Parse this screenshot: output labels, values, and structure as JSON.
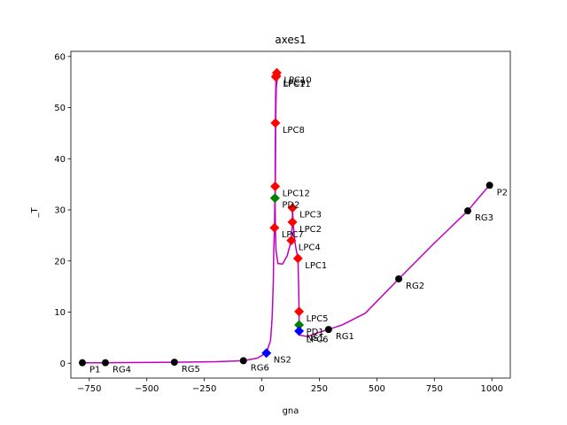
{
  "chart_data": {
    "type": "line",
    "title": "axes1",
    "xlabel": "gna",
    "ylabel": "_T",
    "xlim": [
      -830,
      1080
    ],
    "ylim": [
      -2.9,
      61
    ],
    "xticks": [
      -750,
      -500,
      -250,
      0,
      250,
      500,
      750,
      1000
    ],
    "xtick_labels": [
      "−750",
      "−500",
      "−250",
      "0",
      "250",
      "500",
      "750",
      "1000"
    ],
    "yticks": [
      0,
      10,
      20,
      30,
      40,
      50,
      60
    ],
    "ytick_labels": [
      "0",
      "10",
      "20",
      "30",
      "40",
      "50",
      "60"
    ],
    "grid": false,
    "line_color": "#bf00bf",
    "series": [
      {
        "values": [
          [
            -780,
            0.1
          ],
          [
            -680,
            0.1
          ],
          [
            -380,
            0.2
          ],
          [
            -200,
            0.3
          ],
          [
            -80,
            0.5
          ],
          [
            -20,
            1.0
          ],
          [
            20,
            2.0
          ],
          [
            38,
            4.5
          ],
          [
            45,
            9.0
          ],
          [
            50,
            16.0
          ],
          [
            52,
            22.0
          ],
          [
            55,
            26.5
          ],
          [
            57,
            32.3
          ],
          [
            58,
            34.6
          ],
          [
            58,
            40.0
          ],
          [
            59,
            47.0
          ],
          [
            60,
            52.0
          ],
          [
            61,
            54.7
          ],
          [
            63,
            56.1
          ],
          [
            65,
            56.8
          ],
          [
            67,
            56.5
          ],
          [
            68,
            56.0
          ],
          [
            66,
            55.2
          ],
          [
            63,
            54.0
          ],
          [
            61,
            50.0
          ],
          [
            60,
            45.0
          ],
          [
            59,
            38.0
          ],
          [
            58,
            31.0
          ],
          [
            59,
            26.0
          ],
          [
            62,
            22.0
          ],
          [
            70,
            19.5
          ],
          [
            90,
            19.4
          ],
          [
            110,
            21.0
          ],
          [
            128,
            24.0
          ],
          [
            133,
            27.6
          ],
          [
            133,
            30.4
          ],
          [
            137,
            27.0
          ],
          [
            143,
            24.0
          ],
          [
            150,
            22.0
          ],
          [
            157,
            20.5
          ],
          [
            160,
            15.0
          ],
          [
            162,
            10.1
          ],
          [
            162,
            7.5
          ],
          [
            162,
            6.3
          ],
          [
            165,
            5.5
          ],
          [
            200,
            5.2
          ],
          [
            230,
            5.8
          ],
          [
            290,
            6.6
          ],
          [
            350,
            7.5
          ],
          [
            450,
            9.8
          ],
          [
            595,
            16.5
          ],
          [
            750,
            23.5
          ],
          [
            895,
            29.8
          ],
          [
            945,
            32.5
          ],
          [
            990,
            34.8
          ]
        ]
      }
    ],
    "points": [
      {
        "label": "P1",
        "x": -780,
        "y": 0.1,
        "color": "#000000",
        "marker": "circle"
      },
      {
        "label": "RG4",
        "x": -680,
        "y": 0.1,
        "color": "#000000",
        "marker": "circle"
      },
      {
        "label": "RG5",
        "x": -380,
        "y": 0.2,
        "color": "#000000",
        "marker": "circle"
      },
      {
        "label": "RG6",
        "x": -80,
        "y": 0.5,
        "color": "#000000",
        "marker": "circle"
      },
      {
        "label": "NS2",
        "x": 20,
        "y": 2.0,
        "color": "#0000ff",
        "marker": "diamond"
      },
      {
        "label": "LPC7",
        "x": 55,
        "y": 26.5,
        "color": "#ff0000",
        "marker": "diamond"
      },
      {
        "label": "PD2",
        "x": 57,
        "y": 32.3,
        "color": "#008000",
        "marker": "diamond"
      },
      {
        "label": "LPC12",
        "x": 58,
        "y": 34.6,
        "color": "#ff0000",
        "marker": "diamond"
      },
      {
        "label": "LPC8",
        "x": 59,
        "y": 47.0,
        "color": "#ff0000",
        "marker": "diamond"
      },
      {
        "label": "LPC11",
        "x": 61,
        "y": 56.0,
        "color": "#ff0000",
        "marker": "diamond"
      },
      {
        "label": "LPC9",
        "x": 63,
        "y": 56.2,
        "color": "#ff0000",
        "marker": "diamond"
      },
      {
        "label": "LPC10",
        "x": 65,
        "y": 56.8,
        "color": "#ff0000",
        "marker": "diamond"
      },
      {
        "label": "LPC4",
        "x": 128,
        "y": 24.0,
        "color": "#ff0000",
        "marker": "diamond"
      },
      {
        "label": "LPC2",
        "x": 133,
        "y": 27.6,
        "color": "#ff0000",
        "marker": "diamond"
      },
      {
        "label": "LPC3",
        "x": 133,
        "y": 30.4,
        "color": "#ff0000",
        "marker": "diamond"
      },
      {
        "label": "LPC1",
        "x": 157,
        "y": 20.5,
        "color": "#ff0000",
        "marker": "diamond"
      },
      {
        "label": "LPC5",
        "x": 162,
        "y": 10.1,
        "color": "#ff0000",
        "marker": "diamond"
      },
      {
        "label": "PD1",
        "x": 162,
        "y": 7.5,
        "color": "#008000",
        "marker": "diamond"
      },
      {
        "label": "NS1",
        "x": 162,
        "y": 6.3,
        "color": "#0000ff",
        "marker": "diamond"
      },
      {
        "label": "LPC6",
        "x": 162,
        "y": 6.0,
        "color": "#ff0000",
        "marker": "none"
      },
      {
        "label": "RG1",
        "x": 290,
        "y": 6.6,
        "color": "#000000",
        "marker": "circle"
      },
      {
        "label": "RG2",
        "x": 595,
        "y": 16.5,
        "color": "#000000",
        "marker": "circle"
      },
      {
        "label": "RG3",
        "x": 895,
        "y": 29.8,
        "color": "#000000",
        "marker": "circle"
      },
      {
        "label": "P2",
        "x": 990,
        "y": 34.8,
        "color": "#000000",
        "marker": "circle"
      }
    ]
  }
}
